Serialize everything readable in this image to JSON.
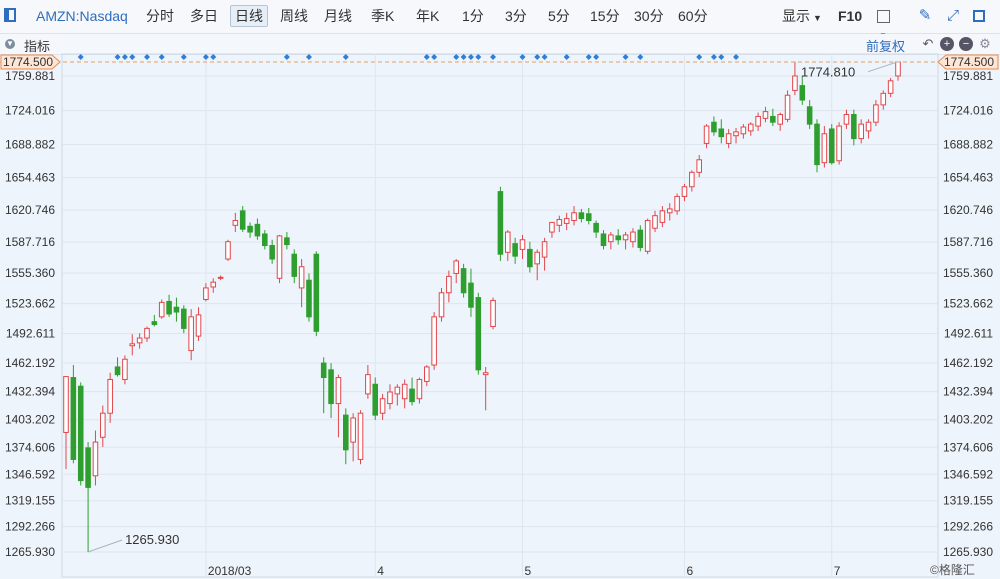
{
  "toolbar": {
    "symbol": "AMZN:Nasdaq",
    "periods": [
      "分时",
      "多日",
      "日线",
      "周线",
      "月线",
      "季K",
      "年K",
      "1分",
      "3分",
      "5分",
      "15分",
      "30分",
      "60分"
    ],
    "active_period": "日线",
    "display": "显示",
    "f10": "F10"
  },
  "indicator_bar": {
    "label": "指标",
    "adjust": "前复权"
  },
  "price_tag": "1774.500",
  "annotations": {
    "low": "1265.930",
    "high": "1774.810"
  },
  "watermark": "格隆汇",
  "chart_data": {
    "type": "candlestick",
    "yticks": [
      "1759.881",
      "1724.016",
      "1688.882",
      "1654.463",
      "1620.746",
      "1587.716",
      "1555.360",
      "1523.662",
      "1492.611",
      "1462.192",
      "1432.394",
      "1403.202",
      "1374.606",
      "1346.592",
      "1319.155",
      "1292.266",
      "1265.930"
    ],
    "ytick_values": [
      1759.881,
      1724.016,
      1688.882,
      1654.463,
      1620.746,
      1587.716,
      1555.36,
      1523.662,
      1492.611,
      1462.192,
      1432.394,
      1403.202,
      1374.606,
      1346.592,
      1319.155,
      1292.266,
      1265.93
    ],
    "ylim": [
      1265.93,
      1774.5
    ],
    "xticks": [
      {
        "label": "2018/03",
        "index": 19
      },
      {
        "label": "4",
        "index": 42
      },
      {
        "label": "5",
        "index": 62
      },
      {
        "label": "6",
        "index": 84
      },
      {
        "label": "7",
        "index": 104
      }
    ],
    "last_price": 1774.5,
    "max_marked": 1774.81,
    "min_marked": 1265.93,
    "candles": [
      {
        "o": 1390,
        "h": 1448,
        "l": 1352,
        "c": 1448
      },
      {
        "o": 1447,
        "h": 1460,
        "l": 1358,
        "c": 1362
      },
      {
        "o": 1438,
        "h": 1442,
        "l": 1335,
        "c": 1340
      },
      {
        "o": 1374,
        "h": 1380,
        "l": 1266,
        "c": 1333
      },
      {
        "o": 1345,
        "h": 1392,
        "l": 1335,
        "c": 1380
      },
      {
        "o": 1385,
        "h": 1418,
        "l": 1375,
        "c": 1410
      },
      {
        "o": 1410,
        "h": 1452,
        "l": 1400,
        "c": 1445
      },
      {
        "o": 1458,
        "h": 1468,
        "l": 1448,
        "c": 1450
      },
      {
        "o": 1445,
        "h": 1470,
        "l": 1440,
        "c": 1466
      },
      {
        "o": 1480,
        "h": 1492,
        "l": 1470,
        "c": 1482
      },
      {
        "o": 1483,
        "h": 1493,
        "l": 1477,
        "c": 1488
      },
      {
        "o": 1488,
        "h": 1500,
        "l": 1484,
        "c": 1498
      },
      {
        "o": 1505,
        "h": 1512,
        "l": 1500,
        "c": 1502
      },
      {
        "o": 1510,
        "h": 1528,
        "l": 1508,
        "c": 1525
      },
      {
        "o": 1526,
        "h": 1533,
        "l": 1510,
        "c": 1513
      },
      {
        "o": 1520,
        "h": 1530,
        "l": 1505,
        "c": 1515
      },
      {
        "o": 1518,
        "h": 1522,
        "l": 1493,
        "c": 1498
      },
      {
        "o": 1475,
        "h": 1518,
        "l": 1465,
        "c": 1510
      },
      {
        "o": 1490,
        "h": 1520,
        "l": 1485,
        "c": 1512
      },
      {
        "o": 1528,
        "h": 1545,
        "l": 1526,
        "c": 1540
      },
      {
        "o": 1541,
        "h": 1550,
        "l": 1535,
        "c": 1546
      },
      {
        "o": 1550,
        "h": 1553,
        "l": 1548,
        "c": 1551
      },
      {
        "o": 1570,
        "h": 1590,
        "l": 1568,
        "c": 1588
      },
      {
        "o": 1605,
        "h": 1618,
        "l": 1598,
        "c": 1610
      },
      {
        "o": 1620,
        "h": 1625,
        "l": 1598,
        "c": 1601
      },
      {
        "o": 1604,
        "h": 1608,
        "l": 1592,
        "c": 1598
      },
      {
        "o": 1606,
        "h": 1612,
        "l": 1590,
        "c": 1594
      },
      {
        "o": 1596,
        "h": 1600,
        "l": 1580,
        "c": 1584
      },
      {
        "o": 1584,
        "h": 1590,
        "l": 1565,
        "c": 1570
      },
      {
        "o": 1550,
        "h": 1595,
        "l": 1545,
        "c": 1594
      },
      {
        "o": 1592,
        "h": 1598,
        "l": 1580,
        "c": 1585
      },
      {
        "o": 1575,
        "h": 1580,
        "l": 1545,
        "c": 1552
      },
      {
        "o": 1540,
        "h": 1570,
        "l": 1520,
        "c": 1562
      },
      {
        "o": 1548,
        "h": 1555,
        "l": 1505,
        "c": 1510
      },
      {
        "o": 1575,
        "h": 1578,
        "l": 1490,
        "c": 1495
      },
      {
        "o": 1462,
        "h": 1468,
        "l": 1410,
        "c": 1447
      },
      {
        "o": 1455,
        "h": 1462,
        "l": 1405,
        "c": 1420
      },
      {
        "o": 1420,
        "h": 1450,
        "l": 1385,
        "c": 1447
      },
      {
        "o": 1408,
        "h": 1415,
        "l": 1357,
        "c": 1372
      },
      {
        "o": 1380,
        "h": 1410,
        "l": 1360,
        "c": 1405
      },
      {
        "o": 1362,
        "h": 1413,
        "l": 1357,
        "c": 1410
      },
      {
        "o": 1430,
        "h": 1460,
        "l": 1425,
        "c": 1450
      },
      {
        "o": 1440,
        "h": 1447,
        "l": 1403,
        "c": 1408
      },
      {
        "o": 1410,
        "h": 1430,
        "l": 1403,
        "c": 1425
      },
      {
        "o": 1420,
        "h": 1440,
        "l": 1414,
        "c": 1432
      },
      {
        "o": 1430,
        "h": 1440,
        "l": 1418,
        "c": 1437
      },
      {
        "o": 1425,
        "h": 1445,
        "l": 1415,
        "c": 1440
      },
      {
        "o": 1435,
        "h": 1447,
        "l": 1418,
        "c": 1422
      },
      {
        "o": 1425,
        "h": 1447,
        "l": 1420,
        "c": 1445
      },
      {
        "o": 1443,
        "h": 1460,
        "l": 1438,
        "c": 1458
      },
      {
        "o": 1460,
        "h": 1515,
        "l": 1455,
        "c": 1510
      },
      {
        "o": 1510,
        "h": 1540,
        "l": 1505,
        "c": 1535
      },
      {
        "o": 1535,
        "h": 1558,
        "l": 1525,
        "c": 1552
      },
      {
        "o": 1555,
        "h": 1570,
        "l": 1545,
        "c": 1568
      },
      {
        "o": 1560,
        "h": 1565,
        "l": 1530,
        "c": 1535
      },
      {
        "o": 1545,
        "h": 1560,
        "l": 1510,
        "c": 1520
      },
      {
        "o": 1530,
        "h": 1535,
        "l": 1450,
        "c": 1455
      },
      {
        "o": 1450,
        "h": 1458,
        "l": 1413,
        "c": 1452
      },
      {
        "o": 1500,
        "h": 1530,
        "l": 1497,
        "c": 1527
      },
      {
        "o": 1640,
        "h": 1645,
        "l": 1568,
        "c": 1575
      },
      {
        "o": 1577,
        "h": 1600,
        "l": 1568,
        "c": 1598
      },
      {
        "o": 1586,
        "h": 1592,
        "l": 1565,
        "c": 1573
      },
      {
        "o": 1580,
        "h": 1595,
        "l": 1570,
        "c": 1590
      },
      {
        "o": 1580,
        "h": 1588,
        "l": 1556,
        "c": 1562
      },
      {
        "o": 1565,
        "h": 1580,
        "l": 1548,
        "c": 1577
      },
      {
        "o": 1572,
        "h": 1592,
        "l": 1558,
        "c": 1588
      },
      {
        "o": 1598,
        "h": 1608,
        "l": 1592,
        "c": 1608
      },
      {
        "o": 1605,
        "h": 1615,
        "l": 1598,
        "c": 1611
      },
      {
        "o": 1607,
        "h": 1618,
        "l": 1600,
        "c": 1612
      },
      {
        "o": 1610,
        "h": 1625,
        "l": 1605,
        "c": 1618
      },
      {
        "o": 1618,
        "h": 1622,
        "l": 1608,
        "c": 1612
      },
      {
        "o": 1617,
        "h": 1623,
        "l": 1606,
        "c": 1610
      },
      {
        "o": 1607,
        "h": 1610,
        "l": 1592,
        "c": 1598
      },
      {
        "o": 1596,
        "h": 1600,
        "l": 1580,
        "c": 1584
      },
      {
        "o": 1588,
        "h": 1598,
        "l": 1580,
        "c": 1595
      },
      {
        "o": 1594,
        "h": 1601,
        "l": 1585,
        "c": 1590
      },
      {
        "o": 1590,
        "h": 1598,
        "l": 1580,
        "c": 1595
      },
      {
        "o": 1588,
        "h": 1602,
        "l": 1582,
        "c": 1598
      },
      {
        "o": 1600,
        "h": 1605,
        "l": 1578,
        "c": 1582
      },
      {
        "o": 1578,
        "h": 1612,
        "l": 1575,
        "c": 1610
      },
      {
        "o": 1602,
        "h": 1620,
        "l": 1598,
        "c": 1615
      },
      {
        "o": 1608,
        "h": 1625,
        "l": 1603,
        "c": 1620
      },
      {
        "o": 1618,
        "h": 1628,
        "l": 1610,
        "c": 1622
      },
      {
        "o": 1620,
        "h": 1638,
        "l": 1616,
        "c": 1635
      },
      {
        "o": 1635,
        "h": 1648,
        "l": 1630,
        "c": 1645
      },
      {
        "o": 1645,
        "h": 1662,
        "l": 1640,
        "c": 1660
      },
      {
        "o": 1660,
        "h": 1678,
        "l": 1655,
        "c": 1673
      },
      {
        "o": 1690,
        "h": 1710,
        "l": 1685,
        "c": 1708
      },
      {
        "o": 1712,
        "h": 1718,
        "l": 1698,
        "c": 1702
      },
      {
        "o": 1705,
        "h": 1715,
        "l": 1690,
        "c": 1697
      },
      {
        "o": 1690,
        "h": 1705,
        "l": 1685,
        "c": 1700
      },
      {
        "o": 1698,
        "h": 1706,
        "l": 1690,
        "c": 1702
      },
      {
        "o": 1700,
        "h": 1710,
        "l": 1695,
        "c": 1707
      },
      {
        "o": 1703,
        "h": 1712,
        "l": 1698,
        "c": 1710
      },
      {
        "o": 1708,
        "h": 1722,
        "l": 1703,
        "c": 1718
      },
      {
        "o": 1716,
        "h": 1728,
        "l": 1712,
        "c": 1723
      },
      {
        "o": 1718,
        "h": 1726,
        "l": 1708,
        "c": 1712
      },
      {
        "o": 1710,
        "h": 1722,
        "l": 1703,
        "c": 1720
      },
      {
        "o": 1715,
        "h": 1745,
        "l": 1712,
        "c": 1740
      },
      {
        "o": 1745,
        "h": 1775,
        "l": 1740,
        "c": 1760
      },
      {
        "o": 1750,
        "h": 1760,
        "l": 1730,
        "c": 1735
      },
      {
        "o": 1728,
        "h": 1735,
        "l": 1705,
        "c": 1710
      },
      {
        "o": 1710,
        "h": 1715,
        "l": 1660,
        "c": 1668
      },
      {
        "o": 1670,
        "h": 1708,
        "l": 1665,
        "c": 1700
      },
      {
        "o": 1705,
        "h": 1710,
        "l": 1668,
        "c": 1670
      },
      {
        "o": 1672,
        "h": 1712,
        "l": 1668,
        "c": 1708
      },
      {
        "o": 1710,
        "h": 1725,
        "l": 1705,
        "c": 1720
      },
      {
        "o": 1720,
        "h": 1725,
        "l": 1688,
        "c": 1695
      },
      {
        "o": 1695,
        "h": 1715,
        "l": 1690,
        "c": 1710
      },
      {
        "o": 1703,
        "h": 1715,
        "l": 1695,
        "c": 1712
      },
      {
        "o": 1712,
        "h": 1735,
        "l": 1708,
        "c": 1730
      },
      {
        "o": 1730,
        "h": 1745,
        "l": 1725,
        "c": 1742
      },
      {
        "o": 1742,
        "h": 1758,
        "l": 1738,
        "c": 1755
      },
      {
        "o": 1760,
        "h": 1775,
        "l": 1755,
        "c": 1774.5
      }
    ],
    "event_markers": [
      2,
      7,
      8,
      9,
      11,
      13,
      16,
      19,
      20,
      30,
      33,
      38,
      49,
      50,
      53,
      54,
      55,
      56,
      58,
      62,
      64,
      65,
      68,
      71,
      72,
      76,
      78,
      86,
      88,
      89,
      91
    ]
  }
}
